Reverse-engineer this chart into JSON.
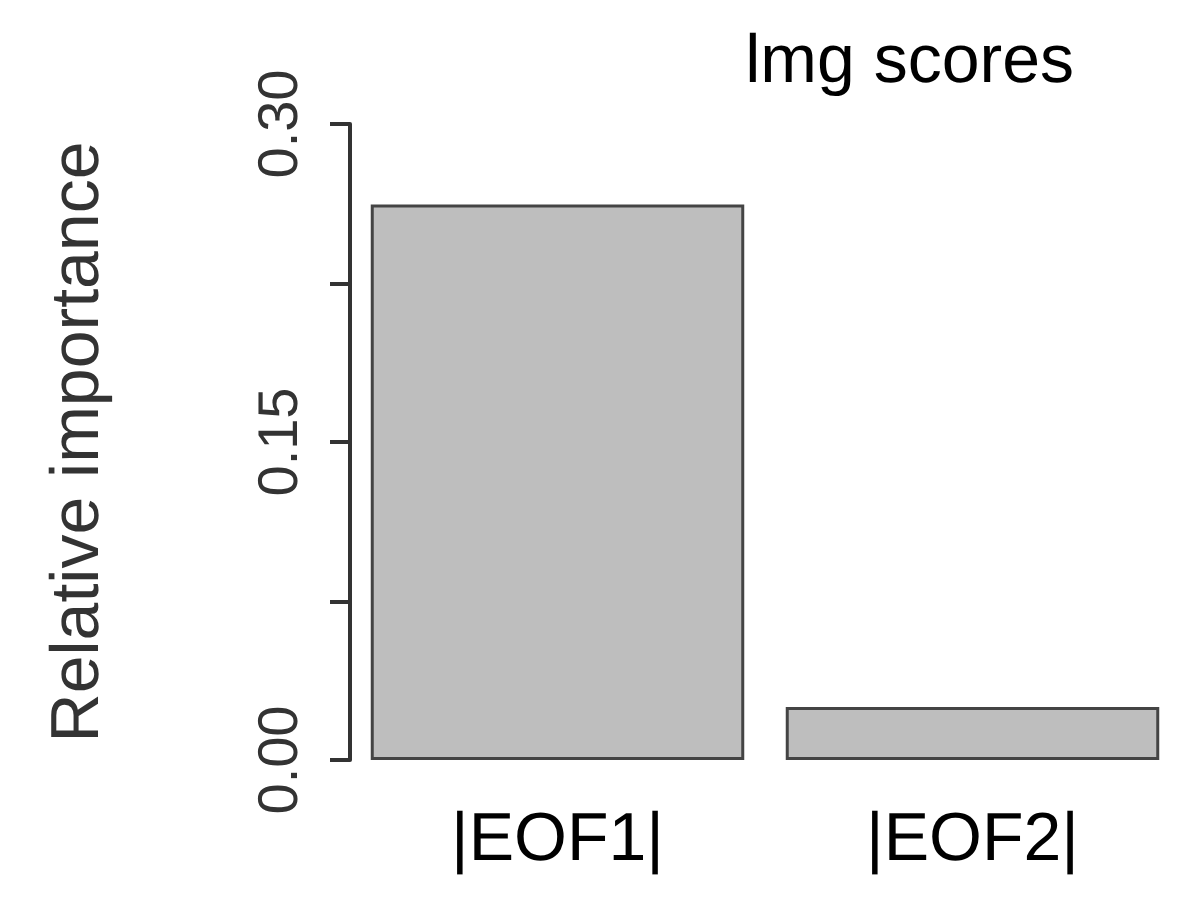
{
  "chart_data": {
    "type": "bar",
    "title": "lmg scores",
    "ylabel": "Relative importance",
    "categories": [
      "|EOF1|",
      "|EOF2|"
    ],
    "values": [
      0.262,
      0.025
    ],
    "color": "#bebebe",
    "ylim": [
      0,
      0.3
    ],
    "yticks": [
      {
        "value": 0,
        "label": "0.00"
      },
      {
        "value": 0.075,
        "label": null
      },
      {
        "value": 0.15,
        "label": "0.15"
      },
      {
        "value": 0.225,
        "label": null
      },
      {
        "value": 0.3,
        "label": "0.30"
      }
    ],
    "grid": false
  }
}
